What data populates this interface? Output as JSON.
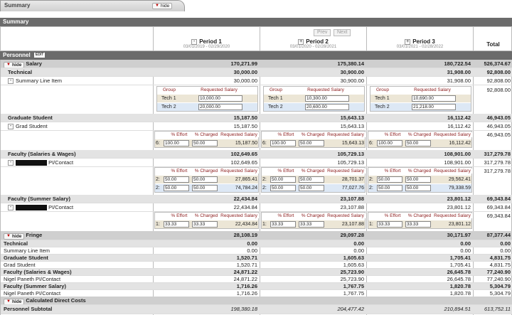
{
  "tab": {
    "title": "Summary",
    "hide": "hide"
  },
  "section_title": "Summary",
  "nav": {
    "prev": "Prev",
    "next": "Next"
  },
  "periods": [
    {
      "label": "Period 1",
      "range": "03/01/2019 - 02/29/2020",
      "toggle": "-"
    },
    {
      "label": "Period 2",
      "range": "03/01/2020 - 02/28/2021",
      "toggle": "+"
    },
    {
      "label": "Period 3",
      "range": "03/01/2021 - 02/28/2022",
      "toggle": "+"
    }
  ],
  "total_label": "Total",
  "personnel": {
    "label": "Personnel",
    "edit": "EDIT"
  },
  "salary": {
    "hide": "hide",
    "label": "Salary",
    "p1": "170,271.99",
    "p2": "175,380.14",
    "p3": "180,722.54",
    "total": "526,374.67"
  },
  "technical": {
    "label": "Technical",
    "p1": "30,000.00",
    "p2": "30,900.00",
    "p3": "31,908.00",
    "total": "92,808.00"
  },
  "summary_line": {
    "mini": "-",
    "label": "Summary Line Item",
    "p1": "30,000.00",
    "p2": "30,900.00",
    "p3": "31,908.00",
    "total": "92,808.00",
    "total2": "92,808.00"
  },
  "group_hdr": {
    "group": "Group",
    "req": "Requested Salary"
  },
  "tech_rows": [
    {
      "label": "Tech 1",
      "p1": "10,000.00",
      "p2": "10,300.00",
      "p3": "10,690.00"
    },
    {
      "label": "Tech 2",
      "p1": "20,000.00",
      "p2": "20,600.00",
      "p3": "21,218.00"
    }
  ],
  "grad": {
    "label": "Graduate Student",
    "p1": "15,187.50",
    "p2": "15,643.13",
    "p3": "16,112.42",
    "total": "46,943.05"
  },
  "grad_line": {
    "mini": "-",
    "label": "Grad Student",
    "p1": "15,187.50",
    "p2": "15,643.13",
    "p3": "16,112.42",
    "total": "46,943.05",
    "total2": "46,943.05"
  },
  "effort_hdr": {
    "effort": "% Effort",
    "charged": "% Charged",
    "req": "Requested Salary"
  },
  "grad_eff": {
    "n": "6:",
    "e": "100.00",
    "c": "50.00",
    "p1": "15,187.50",
    "p2": "15,643.13",
    "p3": "16,112.42"
  },
  "faculty": {
    "label": "Faculty (Salaries & Wages)",
    "p1": "102,649.65",
    "p2": "105,729.13",
    "p3": "108,901.00",
    "total": "317,279.78"
  },
  "faculty_line": {
    "mini": "-",
    "label": "PI/Contact",
    "p1": "102,649.65",
    "p2": "105,729.13",
    "p3": "108,901.00",
    "total": "317,279.78",
    "total2": "317,279.78"
  },
  "fac_eff": [
    {
      "n": "2:",
      "e": "50.00",
      "c": "50.00",
      "p1": "27,865.41",
      "p2": "28,701.37",
      "p3": "29,562.41"
    },
    {
      "n": "2:",
      "e": "50.00",
      "c": "50.00",
      "p1": "74,784.24",
      "p2": "77,027.76",
      "p3": "79,338.59"
    }
  ],
  "summer": {
    "label": "Faculty (Summer Salary)",
    "p1": "22,434.84",
    "p2": "23,107.88",
    "p3": "23,801.12",
    "total": "69,343.84"
  },
  "summer_line": {
    "mini": "-",
    "label": "PI/Contact",
    "p1": "22,434.84",
    "p2": "23,107.88",
    "p3": "23,801.12",
    "total": "69,343.84",
    "total2": "69,343.84"
  },
  "summer_eff": {
    "n": "1:",
    "e": "33.33",
    "c": "33.33",
    "p1": "22,434.84",
    "p2": "23,107.88",
    "p3": "23,801.12"
  },
  "fringe": {
    "hide": "hide",
    "label": "Fringe",
    "p1": "28,108.19",
    "p2": "29,097.28",
    "p3": "30,171.97",
    "total": "87,377.44"
  },
  "fringe_rows": [
    {
      "label": "Technical",
      "bold": true,
      "p1": "0.00",
      "p2": "0.00",
      "p3": "0.00",
      "total": "0.00"
    },
    {
      "label": "Summary Line Item",
      "bold": false,
      "p1": "0.00",
      "p2": "0.00",
      "p3": "0.00",
      "total": "0.00"
    },
    {
      "label": "Graduate Student",
      "bold": true,
      "p1": "1,520.71",
      "p2": "1,605.63",
      "p3": "1,705.41",
      "total": "4,831.75"
    },
    {
      "label": "Grad Student",
      "bold": false,
      "p1": "1,520.71",
      "p2": "1,605.63",
      "p3": "1,705.41",
      "total": "4,831.75"
    },
    {
      "label": "Faculty (Salaries & Wages)",
      "bold": true,
      "p1": "24,871.22",
      "p2": "25,723.90",
      "p3": "26,645.78",
      "total": "77,240.90"
    },
    {
      "label": "Nigel Paneth PI/Contact",
      "bold": false,
      "p1": "24,871.22",
      "p2": "25,723.90",
      "p3": "26,645.78",
      "total": "77,240.90"
    },
    {
      "label": "Faculty (Summer Salary)",
      "bold": true,
      "p1": "1,716.26",
      "p2": "1,767.75",
      "p3": "1,820.78",
      "total": "5,304.79"
    },
    {
      "label": "Nigel Paneth PI/Contact",
      "bold": false,
      "p1": "1,716.26",
      "p2": "1,767.75",
      "p3": "1,820.78",
      "total": "5,304.79"
    }
  ],
  "cdc": {
    "hide": "hide",
    "label": "Calculated Direct Costs"
  },
  "subtotal": {
    "label": "Personnel Subtotal",
    "p1": "198,380.18",
    "p2": "204,477.42",
    "p3": "210,894.51",
    "total": "613,752.11"
  }
}
